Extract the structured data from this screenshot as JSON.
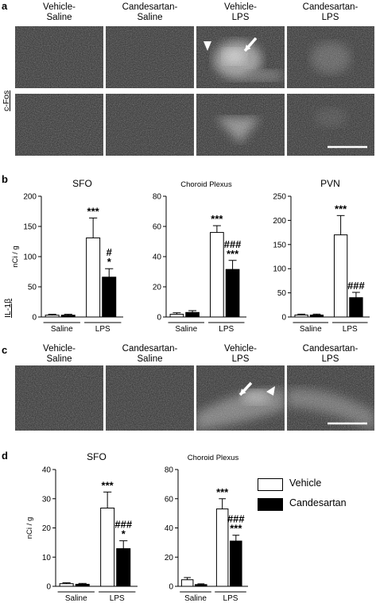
{
  "panels": {
    "a": "a",
    "b": "b",
    "c": "c",
    "d": "d"
  },
  "columns_a": [
    "Vehicle-\nSaline",
    "Candesartan-\nSaline",
    "Vehicle-\nLPS",
    "Candesartan-\nLPS"
  ],
  "columns_c": [
    "Vehicle-\nSaline",
    "Candesartan-\nSaline",
    "Vehicle-\nLPS",
    "Candesartan-\nLPS"
  ],
  "row_label_a": "c-Fos",
  "row_label_c": "IL-1β",
  "legend": [
    {
      "name": "Vehicle",
      "color": "#ffffff"
    },
    {
      "name": "Candesartan",
      "color": "#000000"
    }
  ],
  "chart_data": [
    {
      "type": "bar",
      "panel": "b",
      "title": "SFO",
      "ylabel": "nCi / g",
      "ylim": [
        0,
        200
      ],
      "yticks": [
        0,
        50,
        100,
        150,
        200
      ],
      "groups": [
        "Saline",
        "LPS"
      ],
      "series": [
        {
          "name": "Vehicle",
          "values": [
            3,
            131
          ],
          "errors": [
            1.5,
            33
          ]
        },
        {
          "name": "Candesartan",
          "values": [
            3,
            66
          ],
          "errors": [
            1.5,
            14
          ]
        }
      ],
      "annotations": [
        {
          "group": 1,
          "series": 0,
          "text": "***"
        },
        {
          "group": 1,
          "series": 1,
          "text": "#\n*"
        }
      ]
    },
    {
      "type": "bar",
      "panel": "b",
      "title": "Choroid Plexus",
      "ylabel": "",
      "ylim": [
        0,
        80
      ],
      "yticks": [
        0,
        20,
        40,
        60,
        80
      ],
      "groups": [
        "Saline",
        "LPS"
      ],
      "series": [
        {
          "name": "Vehicle",
          "values": [
            1.8,
            56
          ],
          "errors": [
            1,
            4.5
          ]
        },
        {
          "name": "Candesartan",
          "values": [
            3,
            31.5
          ],
          "errors": [
            1.2,
            6
          ]
        }
      ],
      "annotations": [
        {
          "group": 1,
          "series": 0,
          "text": "***"
        },
        {
          "group": 1,
          "series": 1,
          "text": "###\n***"
        }
      ]
    },
    {
      "type": "bar",
      "panel": "b",
      "title": "PVN",
      "ylabel": "",
      "ylim": [
        0,
        250
      ],
      "yticks": [
        0,
        50,
        100,
        150,
        200,
        250
      ],
      "groups": [
        "Saline",
        "LPS"
      ],
      "series": [
        {
          "name": "Vehicle",
          "values": [
            4,
            170
          ],
          "errors": [
            2,
            40
          ]
        },
        {
          "name": "Candesartan",
          "values": [
            4,
            40
          ],
          "errors": [
            2,
            11
          ]
        }
      ],
      "annotations": [
        {
          "group": 1,
          "series": 0,
          "text": "***"
        },
        {
          "group": 1,
          "series": 1,
          "text": "###"
        }
      ]
    },
    {
      "type": "bar",
      "panel": "d",
      "title": "SFO",
      "ylabel": "nCi / g",
      "ylim": [
        0,
        40
      ],
      "yticks": [
        0,
        10,
        20,
        30,
        40
      ],
      "groups": [
        "Saline",
        "LPS"
      ],
      "series": [
        {
          "name": "Vehicle",
          "values": [
            0.9,
            26.8
          ],
          "errors": [
            0.3,
            5.5
          ]
        },
        {
          "name": "Candesartan",
          "values": [
            0.7,
            12.9
          ],
          "errors": [
            0.3,
            2.7
          ]
        }
      ],
      "annotations": [
        {
          "group": 1,
          "series": 0,
          "text": "***"
        },
        {
          "group": 1,
          "series": 1,
          "text": "###\n*"
        }
      ]
    },
    {
      "type": "bar",
      "panel": "d",
      "title": "Choroid Plexus",
      "ylabel": "",
      "ylim": [
        0,
        80
      ],
      "yticks": [
        0,
        20,
        40,
        60,
        80
      ],
      "groups": [
        "Saline",
        "LPS"
      ],
      "series": [
        {
          "name": "Vehicle",
          "values": [
            4.5,
            53
          ],
          "errors": [
            1.5,
            7
          ]
        },
        {
          "name": "Candesartan",
          "values": [
            1.2,
            31
          ],
          "errors": [
            0.5,
            4
          ]
        }
      ],
      "annotations": [
        {
          "group": 1,
          "series": 0,
          "text": "***"
        },
        {
          "group": 1,
          "series": 1,
          "text": "###\n***"
        }
      ]
    }
  ]
}
